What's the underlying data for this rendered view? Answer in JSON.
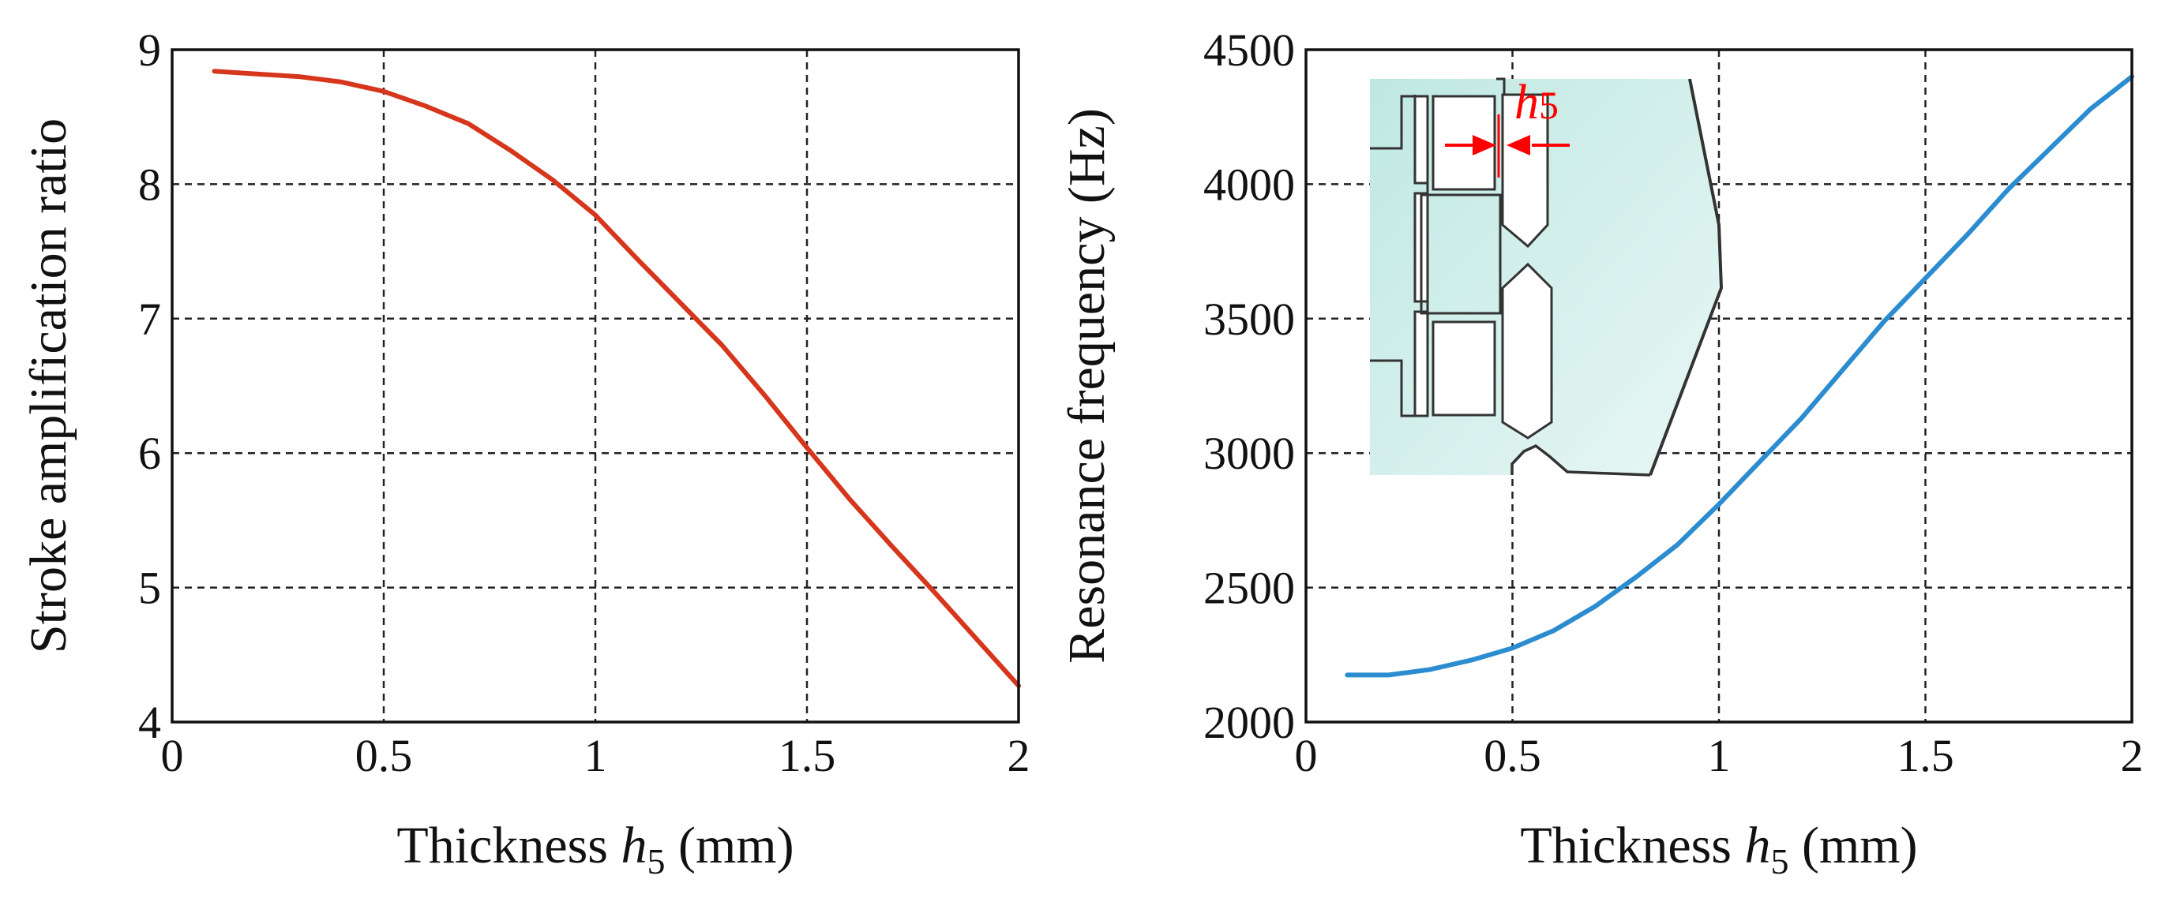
{
  "chart_data": [
    {
      "type": "line",
      "title": "",
      "xlabel_prefix": "Thickness ",
      "xlabel_var": "h",
      "xlabel_sub": "5",
      "xlabel_suffix": " (mm)",
      "ylabel": "Stroke amplification ratio",
      "xlim": [
        0,
        2
      ],
      "ylim": [
        4,
        9
      ],
      "xticks": [
        0,
        0.5,
        1,
        1.5,
        2
      ],
      "xtick_labels": [
        "0",
        "0.5",
        "1",
        "1.5",
        "2"
      ],
      "yticks": [
        4,
        5,
        6,
        7,
        8,
        9
      ],
      "ytick_labels": [
        "4",
        "5",
        "6",
        "7",
        "8",
        "9"
      ],
      "grid": true,
      "series": [
        {
          "name": "Stroke amplification ratio",
          "color": "#d6361b",
          "x": [
            0.1,
            0.2,
            0.3,
            0.4,
            0.5,
            0.6,
            0.7,
            0.8,
            0.9,
            1.0,
            1.1,
            1.2,
            1.3,
            1.4,
            1.5,
            1.6,
            1.7,
            1.8,
            1.9,
            2.0
          ],
          "y": [
            8.84,
            8.82,
            8.8,
            8.76,
            8.69,
            8.58,
            8.45,
            8.25,
            8.03,
            7.77,
            7.44,
            7.12,
            6.8,
            6.43,
            6.04,
            5.66,
            5.31,
            4.97,
            4.62,
            4.27
          ]
        }
      ]
    },
    {
      "type": "line",
      "title": "",
      "xlabel_prefix": "Thickness ",
      "xlabel_var": "h",
      "xlabel_sub": "5",
      "xlabel_suffix": " (mm)",
      "ylabel": "Resonance frequency (Hz)",
      "xlim": [
        0,
        2
      ],
      "ylim": [
        2000,
        4500
      ],
      "xticks": [
        0,
        0.5,
        1,
        1.5,
        2
      ],
      "xtick_labels": [
        "0",
        "0.5",
        "1",
        "1.5",
        "2"
      ],
      "yticks": [
        2000,
        2500,
        3000,
        3500,
        4000,
        4500
      ],
      "ytick_labels": [
        "2000",
        "2500",
        "3000",
        "3500",
        "4000",
        "4500"
      ],
      "grid": true,
      "series": [
        {
          "name": "Resonance frequency",
          "color": "#2b8ccf",
          "x": [
            0.1,
            0.2,
            0.3,
            0.4,
            0.5,
            0.6,
            0.7,
            0.8,
            0.9,
            1.0,
            1.1,
            1.2,
            1.3,
            1.4,
            1.5,
            1.6,
            1.7,
            1.8,
            1.9,
            2.0
          ],
          "y": [
            2175,
            2175,
            2195,
            2230,
            2275,
            2340,
            2430,
            2540,
            2660,
            2810,
            2970,
            3130,
            3310,
            3490,
            3650,
            3810,
            3980,
            4130,
            4280,
            4400
          ]
        }
      ],
      "inset": {
        "label_var": "h",
        "label_sub": "5",
        "fill_color": "#cdeeea",
        "arrow_color": "#ff0000"
      }
    }
  ]
}
